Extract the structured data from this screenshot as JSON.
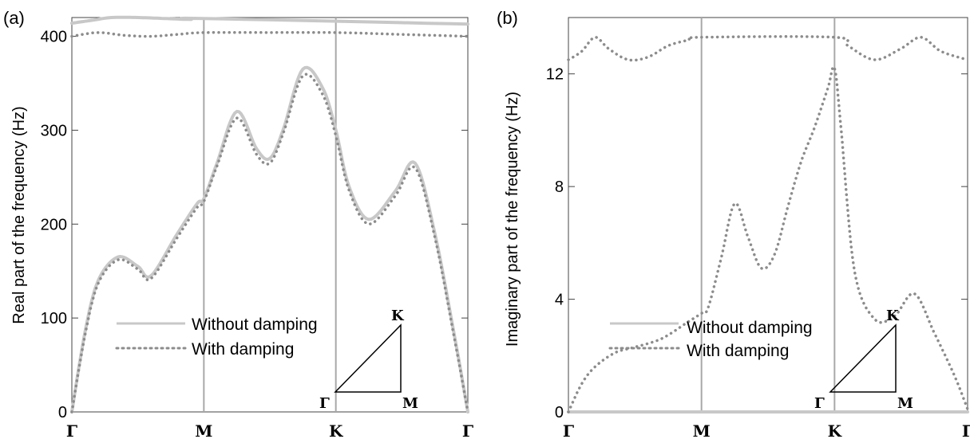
{
  "colors": {
    "without_damping": "#c8c8c8",
    "with_damping": "#8c8c8c",
    "divider": "#a8a8a8",
    "frame": "#444444"
  },
  "chart_data": [
    {
      "panel_label": "(a)",
      "type": "line",
      "ylabel": "Real part of the frequency (Hz)",
      "ylim": [
        0,
        420
      ],
      "y_ticks": [
        0,
        100,
        200,
        300,
        400
      ],
      "y_tick_labels": [
        "0",
        "100",
        "200",
        "300",
        "400"
      ],
      "x_ticks": [
        "Γ",
        "M",
        "K",
        "Γ"
      ],
      "legend": {
        "placement": "bottom-center",
        "entries": [
          "Without damping",
          "With damping"
        ]
      },
      "inset": {
        "labels": [
          "K",
          "Γ",
          "M"
        ]
      },
      "series": [
        {
          "name": "Without damping",
          "style": "solid",
          "bands": [
            {
              "x": [
                0,
                0.1,
                0.2,
                0.35,
                0.5,
                0.6,
                0.8,
                0.95,
                1.0,
                1.1,
                1.25,
                1.4,
                1.5,
                1.6,
                1.75,
                1.9,
                2.0,
                2.1,
                2.25,
                2.45,
                2.6,
                2.75,
                2.9,
                3.0
              ],
              "y": [
                0,
                85,
                140,
                165,
                155,
                145,
                190,
                222,
                227,
                265,
                320,
                280,
                270,
                300,
                365,
                345,
                300,
                240,
                205,
                235,
                265,
                190,
                80,
                0
              ]
            },
            {
              "x": [
                0,
                0.15,
                0.3,
                0.5,
                0.7,
                0.9,
                1.0,
                3.0
              ],
              "y": [
                414,
                417,
                420,
                420,
                419,
                418,
                419,
                413
              ]
            }
          ]
        },
        {
          "name": "With damping",
          "style": "dotted",
          "bands": [
            {
              "x": [
                0,
                0.1,
                0.2,
                0.35,
                0.5,
                0.6,
                0.8,
                0.95,
                1.0,
                1.1,
                1.25,
                1.4,
                1.5,
                1.6,
                1.75,
                1.9,
                2.0,
                2.1,
                2.25,
                2.45,
                2.6,
                2.75,
                2.9,
                3.0
              ],
              "y": [
                0,
                82,
                137,
                162,
                152,
                142,
                186,
                218,
                224,
                262,
                313,
                274,
                265,
                296,
                358,
                338,
                294,
                236,
                200,
                230,
                260,
                186,
                77,
                0
              ]
            },
            {
              "x": [
                0,
                0.2,
                0.4,
                0.6,
                0.8,
                1.0,
                1.5,
                2.0,
                2.5,
                3.0
              ],
              "y": [
                400,
                404,
                401,
                400,
                402,
                404,
                404,
                404,
                402,
                400
              ]
            }
          ]
        }
      ]
    },
    {
      "panel_label": "(b)",
      "type": "line",
      "ylabel": "Imaginary part of the frequency (Hz)",
      "ylim": [
        0,
        14
      ],
      "y_ticks": [
        0,
        4,
        8,
        12
      ],
      "y_tick_labels": [
        "0",
        "4",
        "8",
        "12"
      ],
      "x_ticks": [
        "Γ",
        "M",
        "K",
        "Γ"
      ],
      "legend": {
        "placement": "bottom-center",
        "entries": [
          "Without damping",
          "With damping"
        ]
      },
      "inset": {
        "labels": [
          "K",
          "Γ",
          "M"
        ]
      },
      "series": [
        {
          "name": "Without damping",
          "style": "solid",
          "bands": [
            {
              "x": [
                0,
                3.0
              ],
              "y": [
                0,
                0
              ]
            }
          ]
        },
        {
          "name": "With damping",
          "style": "dotted",
          "bands": [
            {
              "x": [
                0,
                0.1,
                0.2,
                0.35,
                0.5,
                0.7,
                0.9,
                1.0,
                1.05,
                1.15,
                1.25,
                1.35,
                1.45,
                1.55,
                1.65,
                1.75,
                1.85,
                1.95,
                2.0,
                2.05,
                2.15,
                2.3,
                2.45,
                2.6,
                2.75,
                2.9,
                3.0
              ],
              "y": [
                0,
                1.0,
                1.6,
                2.1,
                2.3,
                2.6,
                3.2,
                3.5,
                3.7,
                5.5,
                7.4,
                6.2,
                5.1,
                5.6,
                7.3,
                8.9,
                10.1,
                11.5,
                12.2,
                10.0,
                5.0,
                3.3,
                3.4,
                4.2,
                2.8,
                1.3,
                0.1
              ]
            },
            {
              "x": [
                0,
                0.1,
                0.2,
                0.3,
                0.45,
                0.6,
                0.75,
                0.9,
                1.0,
                2.0,
                2.1,
                2.3,
                2.5,
                2.65,
                2.8,
                3.0
              ],
              "y": [
                12.5,
                12.8,
                13.3,
                12.9,
                12.5,
                12.6,
                13.0,
                13.2,
                13.3,
                13.3,
                13.0,
                12.5,
                12.9,
                13.3,
                12.8,
                12.5
              ]
            }
          ]
        }
      ]
    }
  ]
}
